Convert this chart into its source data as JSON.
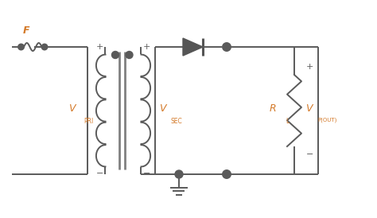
{
  "bg_color": "#ffffff",
  "wire_color": "#5a5a5a",
  "component_color": "#5a5a5a",
  "label_color": "#d47a2a",
  "dot_color": "#5a5a5a",
  "lw": 1.4,
  "fuse_label": "F",
  "vpri_sub": "PRI",
  "vsec_sub": "SEC",
  "rl_sub": "L",
  "vout_sub": "P(OUT)",
  "xlim": [
    0,
    9.48
  ],
  "ylim": [
    0,
    5.48
  ]
}
